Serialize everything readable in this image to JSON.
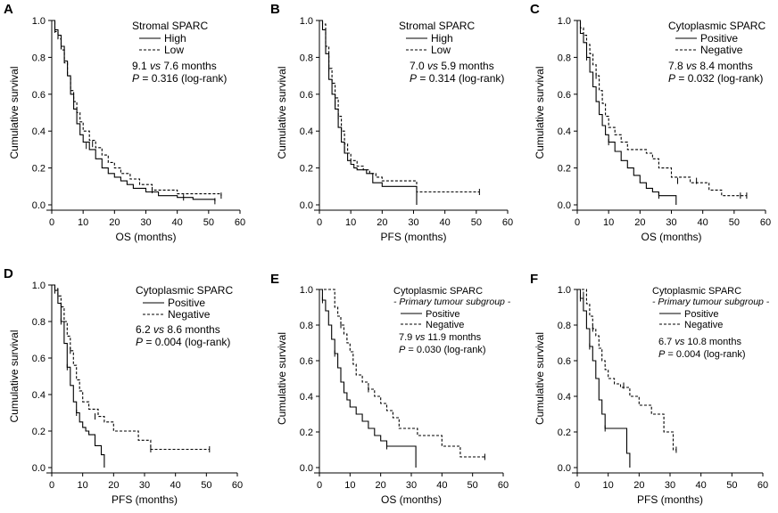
{
  "chart_data": [
    {
      "panel": "A",
      "type": "line",
      "title": "Stromal SPARC",
      "xlabel": "OS (months)",
      "ylabel": "Cumulative survival",
      "xlim": [
        0,
        60
      ],
      "ylim": [
        0,
        1.0
      ],
      "x_ticks": [
        "0",
        "10",
        "20",
        "30",
        "40",
        "50",
        "60"
      ],
      "y_ticks": [
        "0.0",
        "0.2",
        "0.4",
        "0.6",
        "0.8",
        "1.0"
      ],
      "stat_line1": {
        "a": "9.1 ",
        "vs": "vs",
        "b": " 7.6 months"
      },
      "stat_line2": {
        "p": "P",
        "rest": " = 0.316 (log-rank)"
      },
      "series": [
        {
          "name": "High",
          "style": "solid",
          "x": [
            0,
            1,
            2,
            3,
            4,
            5,
            6,
            7,
            8,
            9,
            10,
            12,
            14,
            16,
            18,
            20,
            22,
            24,
            26,
            30,
            34,
            40,
            45,
            52
          ],
          "y": [
            1.0,
            0.95,
            0.92,
            0.86,
            0.78,
            0.7,
            0.6,
            0.52,
            0.44,
            0.38,
            0.34,
            0.3,
            0.25,
            0.2,
            0.17,
            0.15,
            0.13,
            0.11,
            0.09,
            0.07,
            0.05,
            0.04,
            0.03,
            0.02
          ],
          "censored": [
            [
              1,
              0.95
            ],
            [
              11,
              0.32
            ],
            [
              42,
              0.04
            ],
            [
              52,
              0.02
            ]
          ]
        },
        {
          "name": "Low",
          "style": "dashed",
          "x": [
            0,
            1,
            2,
            3,
            4,
            5,
            6,
            7,
            8,
            9,
            10,
            12,
            14,
            16,
            18,
            20,
            22,
            25,
            28,
            32,
            40,
            54
          ],
          "y": [
            1.0,
            0.94,
            0.9,
            0.84,
            0.77,
            0.7,
            0.62,
            0.56,
            0.5,
            0.45,
            0.4,
            0.35,
            0.31,
            0.27,
            0.23,
            0.2,
            0.17,
            0.14,
            0.11,
            0.08,
            0.06,
            0.05
          ],
          "censored": [
            [
              2,
              0.93
            ],
            [
              13,
              0.33
            ],
            [
              32,
              0.08
            ],
            [
              54,
              0.05
            ]
          ]
        }
      ]
    },
    {
      "panel": "B",
      "type": "line",
      "title": "Stromal SPARC",
      "xlabel": "PFS (months)",
      "ylabel": "Cumulative survival",
      "xlim": [
        0,
        60
      ],
      "ylim": [
        0,
        1.0
      ],
      "x_ticks": [
        "0",
        "10",
        "20",
        "30",
        "40",
        "50",
        "60"
      ],
      "y_ticks": [
        "0.0",
        "0.2",
        "0.4",
        "0.6",
        "0.8",
        "1.0"
      ],
      "stat_line1": {
        "a": "7.0 ",
        "vs": "vs",
        "b": " 5.9 months"
      },
      "stat_line2": {
        "p": "P",
        "rest": " = 0.314 (log-rank)"
      },
      "series": [
        {
          "name": "High",
          "style": "solid",
          "x": [
            0,
            1,
            2,
            3,
            4,
            5,
            6,
            7,
            8,
            9,
            10,
            11,
            12,
            15,
            17,
            20,
            31
          ],
          "y": [
            1.0,
            0.95,
            0.82,
            0.68,
            0.6,
            0.52,
            0.42,
            0.34,
            0.28,
            0.24,
            0.22,
            0.2,
            0.19,
            0.17,
            0.12,
            0.1,
            0.0
          ],
          "censored": [
            [
              2,
              0.85
            ],
            [
              5,
              0.55
            ],
            [
              8,
              0.3
            ],
            [
              31,
              0.06
            ]
          ]
        },
        {
          "name": "Low",
          "style": "dashed",
          "x": [
            0,
            1,
            2,
            3,
            4,
            5,
            6,
            7,
            8,
            9,
            10,
            12,
            14,
            16,
            18,
            20,
            31,
            51
          ],
          "y": [
            1.0,
            0.98,
            0.86,
            0.74,
            0.66,
            0.58,
            0.48,
            0.4,
            0.33,
            0.28,
            0.24,
            0.21,
            0.19,
            0.17,
            0.15,
            0.13,
            0.07,
            0.07
          ],
          "censored": [
            [
              1,
              0.98
            ],
            [
              3,
              0.74
            ],
            [
              6,
              0.48
            ],
            [
              51,
              0.07
            ]
          ]
        }
      ]
    },
    {
      "panel": "C",
      "type": "line",
      "title": "Cytoplasmic SPARC",
      "xlabel": "OS (months)",
      "ylabel": "Cumulative survival",
      "xlim": [
        0,
        60
      ],
      "ylim": [
        0,
        1.0
      ],
      "x_ticks": [
        "0",
        "10",
        "20",
        "30",
        "40",
        "50",
        "60"
      ],
      "y_ticks": [
        "0.0",
        "0.2",
        "0.4",
        "0.6",
        "0.8",
        "1.0"
      ],
      "stat_line1": {
        "a": "7.8 ",
        "vs": "vs",
        "b": " 8.4 months"
      },
      "stat_line2": {
        "p": "P",
        "rest": " = 0.032 (log-rank)"
      },
      "series": [
        {
          "name": "Positive",
          "style": "solid",
          "x": [
            0,
            1,
            2,
            3,
            4,
            5,
            6,
            7,
            8,
            9,
            10,
            12,
            14,
            16,
            18,
            20,
            22,
            24,
            26,
            28,
            31.5
          ],
          "y": [
            1.0,
            0.93,
            0.88,
            0.8,
            0.72,
            0.64,
            0.56,
            0.49,
            0.43,
            0.38,
            0.34,
            0.29,
            0.24,
            0.2,
            0.16,
            0.12,
            0.09,
            0.07,
            0.05,
            0.05,
            0.0
          ],
          "censored": [
            [
              3,
              0.8
            ],
            [
              10,
              0.34
            ],
            [
              26,
              0.05
            ]
          ]
        },
        {
          "name": "Negative",
          "style": "dashed",
          "x": [
            0,
            1,
            2,
            3,
            4,
            5,
            6,
            7,
            8,
            9,
            10,
            12,
            14,
            16,
            22,
            24,
            26,
            30,
            36,
            42,
            46,
            54
          ],
          "y": [
            1.0,
            0.96,
            0.92,
            0.87,
            0.82,
            0.76,
            0.7,
            0.62,
            0.55,
            0.48,
            0.42,
            0.38,
            0.34,
            0.3,
            0.28,
            0.25,
            0.2,
            0.15,
            0.12,
            0.08,
            0.05,
            0.05
          ],
          "censored": [
            [
              6,
              0.7
            ],
            [
              32,
              0.13
            ],
            [
              38,
              0.13
            ],
            [
              52,
              0.05
            ],
            [
              54,
              0.05
            ]
          ]
        }
      ]
    },
    {
      "panel": "D",
      "type": "line",
      "title": "Cytoplasmic SPARC",
      "xlabel": "PFS (months)",
      "ylabel": "Cumulative survival",
      "xlim": [
        0,
        60
      ],
      "ylim": [
        0,
        1.0
      ],
      "x_ticks": [
        "0",
        "10",
        "20",
        "30",
        "40",
        "50",
        "60"
      ],
      "y_ticks": [
        "0.0",
        "0.2",
        "0.4",
        "0.6",
        "0.8",
        "1.0"
      ],
      "stat_line1": {
        "a": "6.2 ",
        "vs": "vs",
        "b": " 8.6 months"
      },
      "stat_line2": {
        "p": "P",
        "rest": " = 0.004 (log-rank)"
      },
      "series": [
        {
          "name": "Positive",
          "style": "solid",
          "x": [
            0,
            1,
            2,
            3,
            4,
            5,
            6,
            7,
            8,
            9,
            10,
            11,
            12,
            14,
            16,
            17
          ],
          "y": [
            1.0,
            0.97,
            0.9,
            0.8,
            0.68,
            0.55,
            0.45,
            0.36,
            0.3,
            0.25,
            0.22,
            0.2,
            0.18,
            0.12,
            0.07,
            0.0
          ],
          "censored": [
            [
              1,
              0.97
            ],
            [
              3,
              0.8
            ],
            [
              5,
              0.55
            ],
            [
              8,
              0.3
            ]
          ]
        },
        {
          "name": "Negative",
          "style": "dashed",
          "x": [
            0,
            1,
            2,
            3,
            4,
            5,
            6,
            7,
            8,
            9,
            10,
            12,
            15,
            17,
            20,
            28,
            32,
            51
          ],
          "y": [
            1.0,
            0.98,
            0.94,
            0.88,
            0.8,
            0.72,
            0.64,
            0.56,
            0.48,
            0.42,
            0.36,
            0.32,
            0.28,
            0.25,
            0.2,
            0.15,
            0.1,
            0.1
          ],
          "censored": [
            [
              2,
              0.94
            ],
            [
              6,
              0.64
            ],
            [
              14,
              0.28
            ],
            [
              32,
              0.1
            ],
            [
              51,
              0.1
            ]
          ]
        }
      ]
    },
    {
      "panel": "E",
      "type": "line",
      "title": "Cytoplasmic SPARC",
      "subtitle": "- Primary tumour subgroup -",
      "xlabel": "OS (months)",
      "ylabel": "Cumulative survival",
      "xlim": [
        0,
        60
      ],
      "ylim": [
        0,
        1.0
      ],
      "x_ticks": [
        "0",
        "10",
        "20",
        "30",
        "40",
        "50",
        "60"
      ],
      "y_ticks": [
        "0.0",
        "0.2",
        "0.4",
        "0.6",
        "0.8",
        "1.0"
      ],
      "stat_line1": {
        "a": "7.9 ",
        "vs": "vs",
        "b": " 11.9 months"
      },
      "stat_line2": {
        "p": "P",
        "rest": " = 0.030 (log-rank)"
      },
      "series": [
        {
          "name": "Positive",
          "style": "solid",
          "x": [
            0,
            1,
            2,
            3,
            4,
            5,
            6,
            7,
            8,
            9,
            10,
            12,
            14,
            16,
            18,
            20,
            22,
            25,
            31.5
          ],
          "y": [
            1.0,
            0.94,
            0.88,
            0.8,
            0.72,
            0.64,
            0.56,
            0.48,
            0.42,
            0.38,
            0.34,
            0.3,
            0.26,
            0.22,
            0.18,
            0.15,
            0.12,
            0.12,
            0.0
          ],
          "censored": [
            [
              1,
              0.94
            ],
            [
              5,
              0.64
            ],
            [
              22,
              0.12
            ]
          ]
        },
        {
          "name": "Negative",
          "style": "dashed",
          "x": [
            0,
            4,
            5,
            6,
            7,
            8,
            9,
            10,
            11,
            12,
            14,
            16,
            18,
            20,
            22,
            24,
            26,
            32,
            40,
            46,
            54
          ],
          "y": [
            1.0,
            1.0,
            0.9,
            0.85,
            0.8,
            0.75,
            0.7,
            0.65,
            0.58,
            0.52,
            0.48,
            0.44,
            0.4,
            0.36,
            0.32,
            0.28,
            0.22,
            0.18,
            0.12,
            0.06,
            0.06
          ],
          "censored": [
            [
              7,
              0.8
            ],
            [
              16,
              0.44
            ],
            [
              54,
              0.06
            ]
          ]
        }
      ]
    },
    {
      "panel": "F",
      "type": "line",
      "title": "Cytoplasmic SPARC",
      "subtitle": "- Primary tumour subgroup -",
      "xlabel": "PFS (months)",
      "ylabel": "Cumulative survival",
      "xlim": [
        0,
        60
      ],
      "ylim": [
        0,
        1.0
      ],
      "x_ticks": [
        "0",
        "10",
        "20",
        "30",
        "40",
        "50",
        "60"
      ],
      "y_ticks": [
        "0.0",
        "0.2",
        "0.4",
        "0.6",
        "0.8",
        "1.0"
      ],
      "stat_line1": {
        "a": "6.7 ",
        "vs": "vs",
        "b": " 10.8 months"
      },
      "stat_line2": {
        "p": "P",
        "rest": " = 0.004 (log-rank)"
      },
      "series": [
        {
          "name": "Positive",
          "style": "solid",
          "x": [
            0,
            1,
            2,
            3,
            4,
            5,
            6,
            7,
            8,
            9,
            12,
            16,
            17
          ],
          "y": [
            1.0,
            0.95,
            0.88,
            0.78,
            0.68,
            0.6,
            0.5,
            0.38,
            0.3,
            0.22,
            0.22,
            0.08,
            0.0
          ],
          "censored": [
            [
              1,
              0.95
            ],
            [
              4,
              0.68
            ],
            [
              9,
              0.22
            ]
          ]
        },
        {
          "name": "Negative",
          "style": "dashed",
          "x": [
            0,
            2,
            3,
            4,
            5,
            6,
            7,
            8,
            9,
            10,
            12,
            14,
            17,
            20,
            24,
            28,
            31,
            32
          ],
          "y": [
            1.0,
            1.0,
            0.92,
            0.85,
            0.78,
            0.74,
            0.67,
            0.6,
            0.55,
            0.5,
            0.47,
            0.45,
            0.4,
            0.35,
            0.3,
            0.2,
            0.1,
            0.1
          ],
          "censored": [
            [
              2,
              0.97
            ],
            [
              5,
              0.78
            ],
            [
              15,
              0.46
            ],
            [
              32,
              0.1
            ]
          ]
        }
      ]
    }
  ]
}
